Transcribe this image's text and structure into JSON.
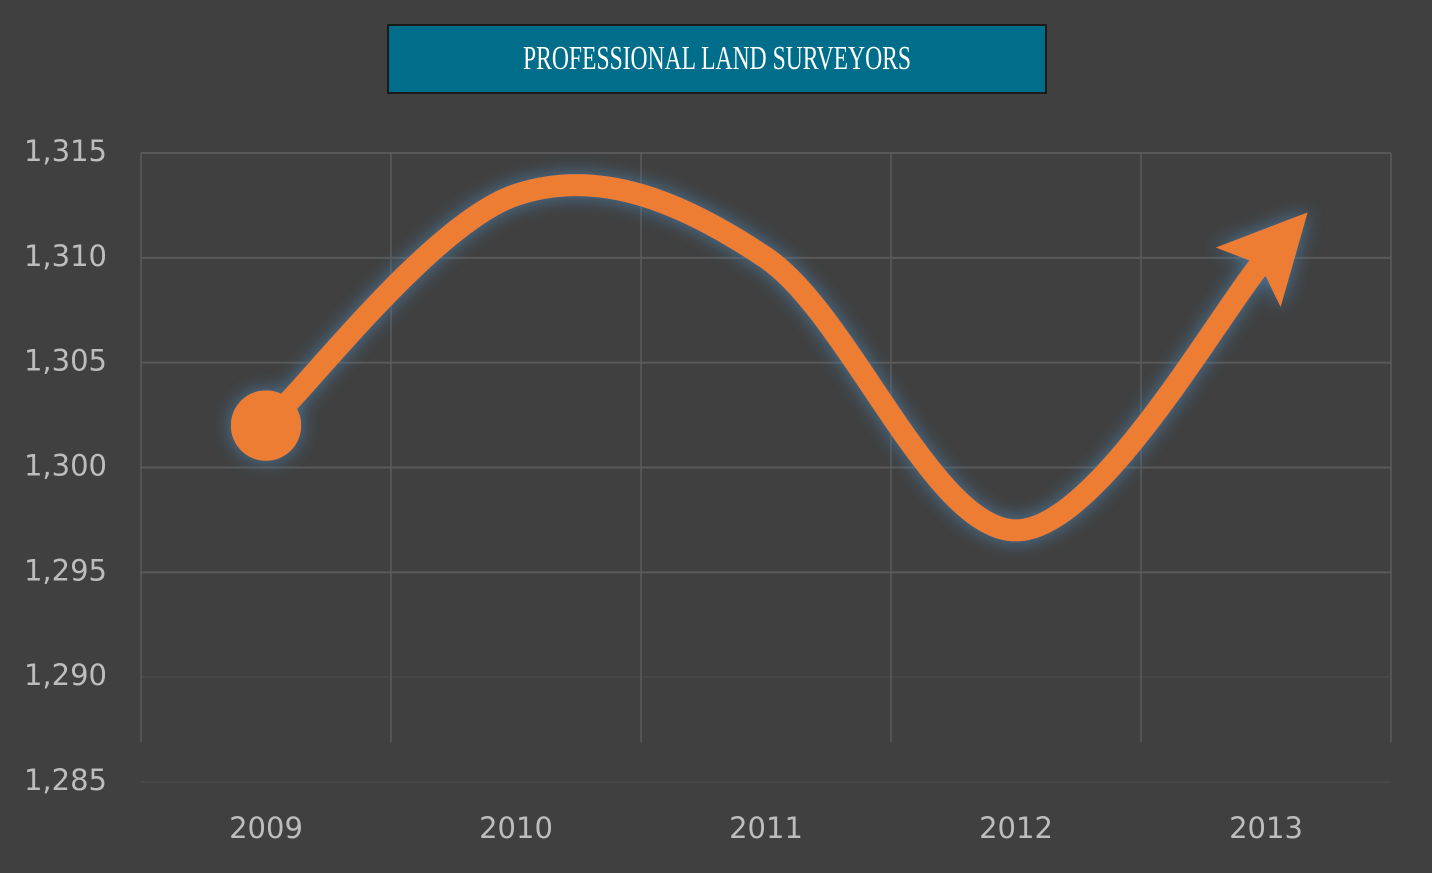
{
  "chart_data": {
    "type": "line",
    "title": "PROFESSIONAL LAND SURVEYORS",
    "categories": [
      "2009",
      "2010",
      "2011",
      "2012",
      "2013"
    ],
    "series": [
      {
        "name": "Professional Land Surveyors",
        "color": "#ed7d31",
        "values": [
          1302,
          1313,
          1310,
          1297,
          1310
        ]
      }
    ],
    "ylim": [
      1285,
      1315
    ],
    "yticks": [
      {
        "value": 1285,
        "label": "1,285"
      },
      {
        "value": 1290,
        "label": "1,290"
      },
      {
        "value": 1295,
        "label": "1,295"
      },
      {
        "value": 1300,
        "label": "1,300"
      },
      {
        "value": 1305,
        "label": "1,305"
      },
      {
        "value": 1310,
        "label": "1,310"
      },
      {
        "value": 1315,
        "label": "1,315"
      }
    ],
    "grid": true,
    "smooth": true
  }
}
